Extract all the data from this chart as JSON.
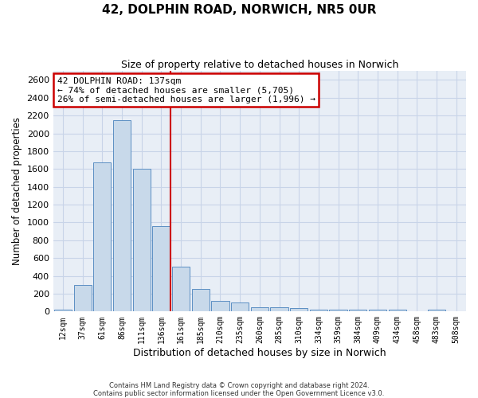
{
  "title1": "42, DOLPHIN ROAD, NORWICH, NR5 0UR",
  "title2": "Size of property relative to detached houses in Norwich",
  "xlabel": "Distribution of detached houses by size in Norwich",
  "ylabel": "Number of detached properties",
  "bin_labels": [
    "12sqm",
    "37sqm",
    "61sqm",
    "86sqm",
    "111sqm",
    "136sqm",
    "161sqm",
    "185sqm",
    "210sqm",
    "235sqm",
    "260sqm",
    "285sqm",
    "310sqm",
    "334sqm",
    "359sqm",
    "384sqm",
    "409sqm",
    "434sqm",
    "458sqm",
    "483sqm",
    "508sqm"
  ],
  "bar_heights": [
    25,
    300,
    1670,
    2150,
    1600,
    960,
    500,
    250,
    120,
    100,
    50,
    50,
    35,
    20,
    20,
    20,
    20,
    20,
    5,
    25,
    0
  ],
  "bar_color": "#c8d9ea",
  "bar_edgecolor": "#5c8fc3",
  "bar_linewidth": 0.7,
  "vline_color": "#cc0000",
  "vline_lw": 1.5,
  "annotation_line1": "42 DOLPHIN ROAD: 137sqm",
  "annotation_line2": "← 74% of detached houses are smaller (5,705)",
  "annotation_line3": "26% of semi-detached houses are larger (1,996) →",
  "annotation_box_edgecolor": "#cc0000",
  "ylim_max": 2700,
  "yticks": [
    0,
    200,
    400,
    600,
    800,
    1000,
    1200,
    1400,
    1600,
    1800,
    2000,
    2200,
    2400,
    2600
  ],
  "grid_color": "#c8d4e8",
  "background_color": "#e8eef6",
  "footer1": "Contains HM Land Registry data © Crown copyright and database right 2024.",
  "footer2": "Contains public sector information licensed under the Open Government Licence v3.0."
}
